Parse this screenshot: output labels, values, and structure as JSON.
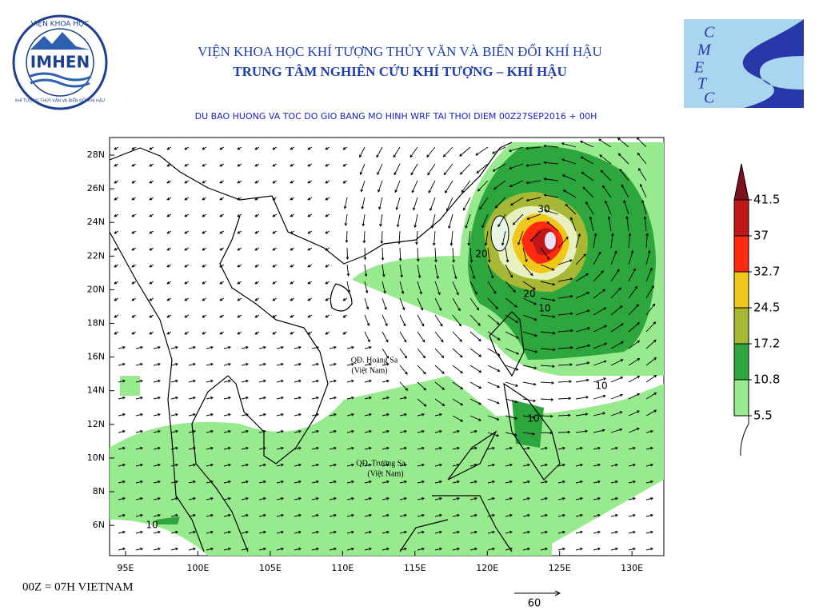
{
  "header": {
    "line1": "VIỆN KHOA HỌC KHÍ TƯỢNG THỦY VĂN VÀ BIẾN ĐỔI KHÍ HẬU",
    "line2": "TRUNG TÂM NGHIÊN CỨU KHÍ TƯỢNG – KHÍ HẬU"
  },
  "logo_left": {
    "top": "VIỆN KHOA HỌC",
    "center": "IMHEN",
    "bottom": "KHÍ TƯỢNG THỦY VĂN VÀ BIẾN ĐỔI KHÍ HẬU"
  },
  "logo_right": {
    "letters": [
      "C",
      "M",
      "E",
      "T",
      "C"
    ]
  },
  "map": {
    "title": "DU BAO HUONG VA TOC DO GIO BANG MO HINH WRF TAI THOI DIEM  00Z27SEP2016 + 00H",
    "lon_ticks": [
      {
        "value": 95,
        "label": "95E"
      },
      {
        "value": 100,
        "label": "100E"
      },
      {
        "value": 105,
        "label": "105E"
      },
      {
        "value": 110,
        "label": "110E"
      },
      {
        "value": 115,
        "label": "115E"
      },
      {
        "value": 120,
        "label": "120E"
      },
      {
        "value": 125,
        "label": "125E"
      },
      {
        "value": 130,
        "label": "130E"
      }
    ],
    "lat_ticks": [
      {
        "value": 28,
        "label": "28N"
      },
      {
        "value": 26,
        "label": "26N"
      },
      {
        "value": 24,
        "label": "24N"
      },
      {
        "value": 22,
        "label": "22N"
      },
      {
        "value": 20,
        "label": "20N"
      },
      {
        "value": 18,
        "label": "18N"
      },
      {
        "value": 16,
        "label": "16N"
      },
      {
        "value": 14,
        "label": "14N"
      },
      {
        "value": 12,
        "label": "12N"
      },
      {
        "value": 10,
        "label": "10N"
      },
      {
        "value": 8,
        "label": "8N"
      },
      {
        "value": 6,
        "label": "6N"
      }
    ],
    "contour_labels": [
      30,
      20,
      20,
      10,
      10,
      10,
      10
    ],
    "places": [
      "QĐ. Hoàng Sa",
      "(Việt Nam)",
      "QĐ. Trường Sa",
      "(Việt Nam)"
    ],
    "reference_vector": 60
  },
  "colorbar": {
    "levels": [
      41.5,
      37,
      32.7,
      24.5,
      17.2,
      10.8,
      5.5
    ],
    "colors": [
      "#7a1020",
      "#c01818",
      "#ff2a10",
      "#f0c81a",
      "#a6b834",
      "#2ea63e",
      "#98ea8e"
    ]
  },
  "footer": "00Z = 07H VIETNAM"
}
